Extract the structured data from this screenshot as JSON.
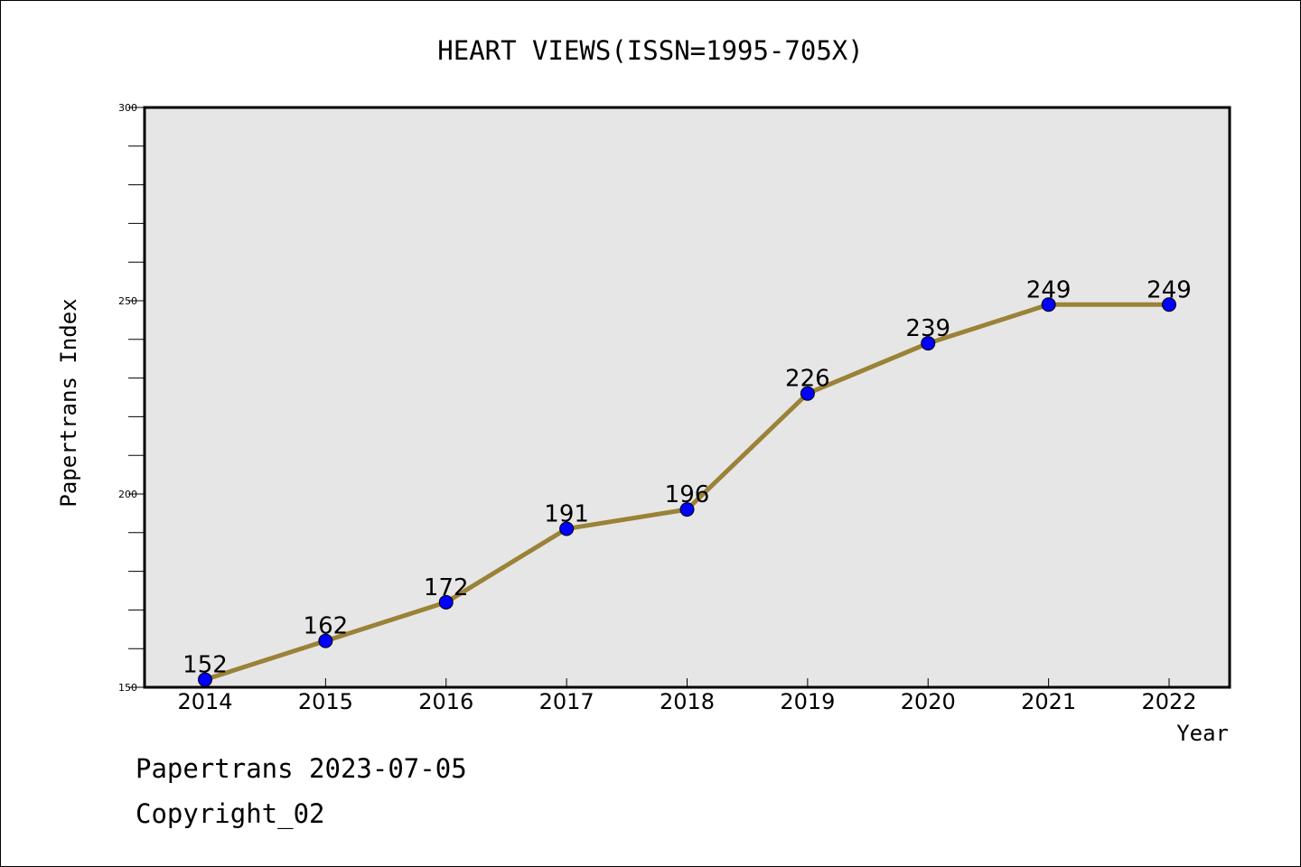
{
  "chart_data": {
    "type": "line",
    "title": "HEART VIEWS(ISSN=1995-705X)",
    "xlabel": "Year",
    "ylabel": "Papertrans Index",
    "categories": [
      "2014",
      "2015",
      "2016",
      "2017",
      "2018",
      "2019",
      "2020",
      "2021",
      "2022"
    ],
    "series": [
      {
        "values": [
          152,
          162,
          172,
          191,
          196,
          226,
          239,
          249,
          249
        ]
      }
    ],
    "ylim": [
      150,
      300
    ],
    "yticks": [
      "150",
      "200",
      "250",
      "300"
    ],
    "grid": false,
    "colors": {
      "line": "#9a8237",
      "marker": "#0000ff",
      "plot_bg": "#e6e6e6"
    }
  },
  "footer": {
    "line1": "Papertrans 2023-07-05",
    "line2": "Copyright_02"
  }
}
